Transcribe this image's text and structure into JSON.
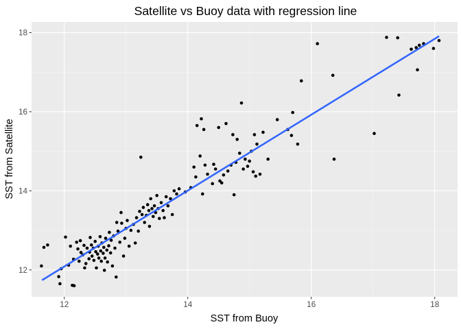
{
  "chart_data": {
    "type": "scatter",
    "title": "Satellite vs Buoy data with regression line",
    "xlabel": "SST from Buoy",
    "ylabel": "SST from Satellite",
    "xlim": [
      11.47,
      18.37
    ],
    "ylim": [
      11.32,
      18.27
    ],
    "x_ticks": [
      12,
      14,
      16,
      18
    ],
    "y_ticks": [
      12,
      14,
      16,
      18
    ],
    "x_tick_labels": [
      "12",
      "14",
      "16",
      "18"
    ],
    "y_tick_labels": [
      "12",
      "14",
      "16",
      "18"
    ],
    "grid": true,
    "colors": {
      "panel": "#ebebeb",
      "grid_major": "#ffffff",
      "grid_minor": "#f5f5f5",
      "points": "#000000",
      "regression": "#3366ff"
    },
    "regression": {
      "x": [
        11.64,
        18.07
      ],
      "y": [
        11.74,
        17.91
      ]
    },
    "points": [
      [
        11.63,
        12.1
      ],
      [
        11.67,
        12.57
      ],
      [
        11.73,
        12.63
      ],
      [
        11.91,
        11.83
      ],
      [
        11.93,
        11.65
      ],
      [
        11.95,
        12.03
      ],
      [
        12.02,
        12.83
      ],
      [
        12.07,
        12.12
      ],
      [
        12.1,
        12.6
      ],
      [
        12.13,
        11.61
      ],
      [
        12.16,
        11.6
      ],
      [
        12.15,
        12.27
      ],
      [
        12.2,
        12.7
      ],
      [
        12.22,
        12.53
      ],
      [
        12.24,
        12.22
      ],
      [
        12.27,
        12.44
      ],
      [
        12.26,
        12.74
      ],
      [
        12.3,
        12.38
      ],
      [
        12.32,
        12.62
      ],
      [
        12.33,
        12.05
      ],
      [
        12.35,
        12.16
      ],
      [
        12.37,
        12.55
      ],
      [
        12.4,
        12.28
      ],
      [
        12.42,
        12.82
      ],
      [
        12.41,
        12.45
      ],
      [
        12.44,
        12.63
      ],
      [
        12.45,
        12.35
      ],
      [
        12.47,
        12.55
      ],
      [
        12.48,
        12.24
      ],
      [
        12.5,
        12.72
      ],
      [
        12.51,
        12.46
      ],
      [
        12.52,
        12.05
      ],
      [
        12.54,
        12.4
      ],
      [
        12.55,
        12.6
      ],
      [
        12.56,
        12.3
      ],
      [
        12.58,
        12.84
      ],
      [
        12.59,
        12.48
      ],
      [
        12.6,
        12.22
      ],
      [
        12.61,
        12.68
      ],
      [
        12.63,
        12.42
      ],
      [
        12.64,
        12.57
      ],
      [
        12.65,
        11.99
      ],
      [
        12.66,
        12.3
      ],
      [
        12.67,
        12.8
      ],
      [
        12.69,
        12.5
      ],
      [
        12.7,
        12.2
      ],
      [
        12.72,
        12.61
      ],
      [
        12.73,
        12.95
      ],
      [
        12.75,
        12.43
      ],
      [
        12.76,
        12.75
      ],
      [
        12.78,
        12.1
      ],
      [
        12.8,
        12.86
      ],
      [
        12.82,
        12.55
      ],
      [
        12.84,
        11.82
      ],
      [
        12.85,
        13.2
      ],
      [
        12.87,
        12.98
      ],
      [
        12.9,
        12.7
      ],
      [
        12.92,
        13.45
      ],
      [
        12.93,
        13.18
      ],
      [
        12.96,
        12.35
      ],
      [
        12.98,
        12.8
      ],
      [
        13.0,
        13.05
      ],
      [
        13.02,
        13.25
      ],
      [
        13.05,
        12.6
      ],
      [
        13.08,
        13.0
      ],
      [
        13.12,
        13.15
      ],
      [
        13.15,
        12.68
      ],
      [
        13.17,
        13.32
      ],
      [
        13.2,
        12.98
      ],
      [
        13.22,
        13.48
      ],
      [
        13.24,
        14.85
      ],
      [
        13.26,
        13.4
      ],
      [
        13.28,
        13.58
      ],
      [
        13.3,
        13.2
      ],
      [
        13.33,
        13.38
      ],
      [
        13.35,
        13.65
      ],
      [
        13.37,
        13.5
      ],
      [
        13.38,
        13.1
      ],
      [
        13.4,
        13.8
      ],
      [
        13.42,
        13.55
      ],
      [
        13.44,
        13.35
      ],
      [
        13.46,
        13.62
      ],
      [
        13.48,
        13.45
      ],
      [
        13.5,
        13.88
      ],
      [
        13.52,
        13.55
      ],
      [
        13.54,
        13.3
      ],
      [
        13.57,
        13.7
      ],
      [
        13.6,
        13.5
      ],
      [
        13.62,
        13.32
      ],
      [
        13.65,
        13.85
      ],
      [
        13.68,
        13.62
      ],
      [
        13.72,
        13.8
      ],
      [
        13.75,
        13.4
      ],
      [
        13.78,
        14.0
      ],
      [
        13.82,
        13.92
      ],
      [
        13.86,
        14.05
      ],
      [
        13.96,
        13.97
      ],
      [
        14.05,
        14.08
      ],
      [
        14.1,
        14.6
      ],
      [
        14.13,
        14.35
      ],
      [
        14.15,
        15.65
      ],
      [
        14.2,
        14.88
      ],
      [
        14.22,
        15.82
      ],
      [
        14.24,
        13.92
      ],
      [
        14.26,
        15.55
      ],
      [
        14.28,
        14.65
      ],
      [
        14.32,
        14.42
      ],
      [
        14.4,
        14.18
      ],
      [
        14.42,
        14.67
      ],
      [
        14.45,
        14.55
      ],
      [
        14.5,
        15.6
      ],
      [
        14.52,
        14.25
      ],
      [
        14.55,
        14.2
      ],
      [
        14.58,
        14.4
      ],
      [
        14.62,
        15.7
      ],
      [
        14.65,
        14.5
      ],
      [
        14.7,
        14.65
      ],
      [
        14.73,
        15.42
      ],
      [
        14.75,
        13.9
      ],
      [
        14.78,
        14.72
      ],
      [
        14.8,
        15.3
      ],
      [
        14.84,
        14.95
      ],
      [
        14.87,
        16.22
      ],
      [
        14.9,
        14.55
      ],
      [
        14.93,
        14.8
      ],
      [
        14.97,
        14.62
      ],
      [
        15.0,
        14.75
      ],
      [
        15.03,
        15.0
      ],
      [
        15.06,
        14.48
      ],
      [
        15.08,
        15.42
      ],
      [
        15.1,
        14.37
      ],
      [
        15.12,
        15.18
      ],
      [
        15.17,
        14.42
      ],
      [
        15.22,
        15.48
      ],
      [
        15.3,
        14.8
      ],
      [
        15.45,
        15.8
      ],
      [
        15.62,
        15.55
      ],
      [
        15.68,
        15.4
      ],
      [
        15.7,
        15.98
      ],
      [
        15.78,
        15.18
      ],
      [
        15.84,
        16.78
      ],
      [
        16.1,
        17.72
      ],
      [
        16.35,
        16.92
      ],
      [
        16.37,
        14.8
      ],
      [
        17.02,
        15.45
      ],
      [
        17.22,
        17.88
      ],
      [
        17.4,
        17.87
      ],
      [
        17.42,
        16.42
      ],
      [
        17.62,
        17.58
      ],
      [
        17.7,
        17.62
      ],
      [
        17.72,
        17.06
      ],
      [
        17.75,
        17.68
      ],
      [
        17.82,
        17.72
      ],
      [
        17.98,
        17.6
      ],
      [
        18.07,
        17.8
      ]
    ]
  }
}
